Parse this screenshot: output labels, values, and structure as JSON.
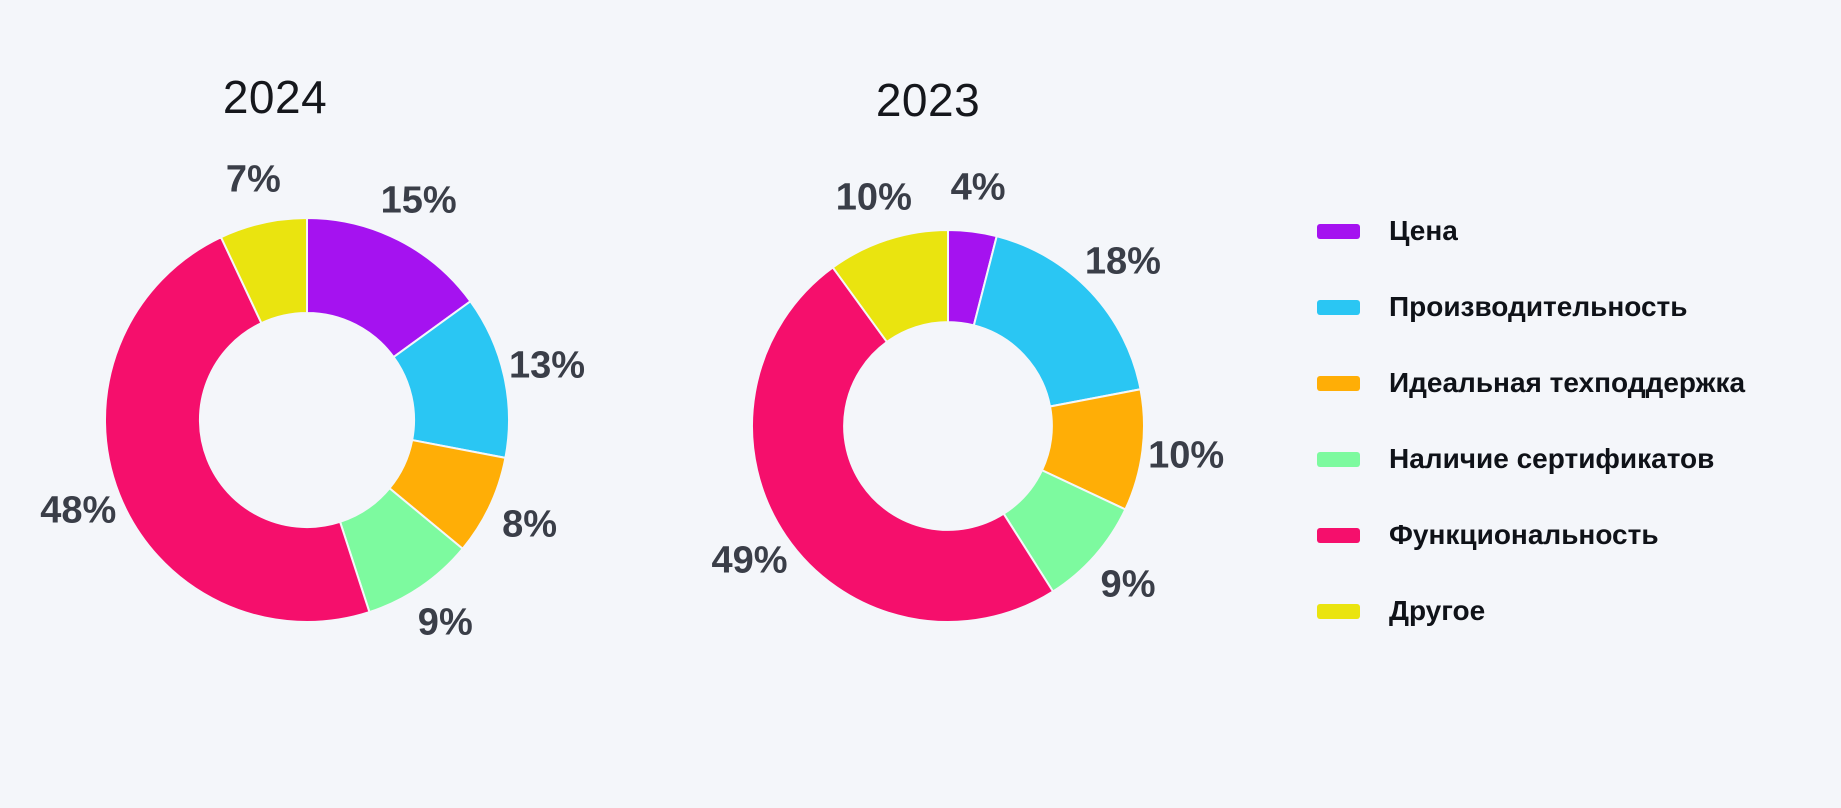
{
  "canvas": {
    "background": "#f4f6fa"
  },
  "chart_data": [
    {
      "type": "pie",
      "subtype": "donut",
      "title": "2024",
      "categories": [
        "Цена",
        "Производительность",
        "Идеальная техподдержка",
        "Наличие сертификатов",
        "Функциональность",
        "Другое"
      ],
      "values": [
        15,
        13,
        8,
        9,
        48,
        7
      ],
      "labels": [
        "15%",
        "13%",
        "8%",
        "9%",
        "48%",
        "7%"
      ],
      "colors": [
        "#a512f0",
        "#2ac6f3",
        "#ffae06",
        "#7dfa9f",
        "#f50f6c",
        "#eae40f"
      ],
      "total": 100,
      "start_angle_deg": 0,
      "direction": "clockwise",
      "hole_ratio": 0.53,
      "legend_position": "right",
      "grid": false
    },
    {
      "type": "pie",
      "subtype": "donut",
      "title": "2023",
      "categories": [
        "Цена",
        "Производительность",
        "Идеальная техподдержка",
        "Наличие сертификатов",
        "Функциональность",
        "Другое"
      ],
      "values": [
        4,
        18,
        10,
        9,
        49,
        10
      ],
      "labels": [
        "4%",
        "18%",
        "10%",
        "9%",
        "49%",
        "10%"
      ],
      "colors": [
        "#a512f0",
        "#2ac6f3",
        "#ffae06",
        "#7dfa9f",
        "#f50f6c",
        "#eae40f"
      ],
      "total": 100,
      "start_angle_deg": 0,
      "direction": "clockwise",
      "hole_ratio": 0.53,
      "legend_position": "right",
      "grid": false
    }
  ],
  "legend": {
    "position": "right",
    "items": [
      {
        "label": "Цена",
        "color": "#a512f0"
      },
      {
        "label": "Производительность",
        "color": "#2ac6f3"
      },
      {
        "label": "Идеальная техподдержка",
        "color": "#ffae06"
      },
      {
        "label": "Наличие сертификатов",
        "color": "#7dfa9f"
      },
      {
        "label": "Функциональность",
        "color": "#f50f6c"
      },
      {
        "label": "Другое",
        "color": "#eae40f"
      }
    ]
  },
  "style": {
    "title_color": "#15171c",
    "slice_label_color": "#3a3e48",
    "legend_text_color": "#0f1218",
    "slice_separator_color": "#f4f6fa"
  }
}
